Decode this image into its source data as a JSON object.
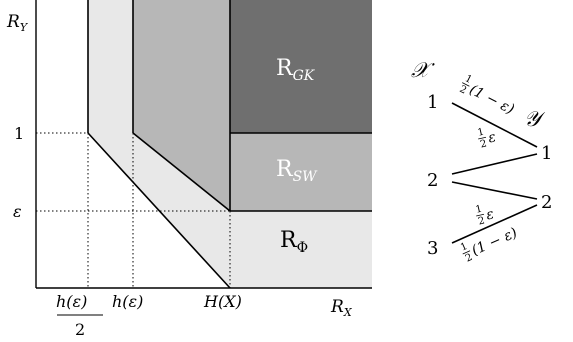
{
  "region_plot": {
    "axis_y_label": "R",
    "axis_y_sub": "Y",
    "axis_x_label": "R",
    "axis_x_sub": "X",
    "tick_y_1": "1",
    "tick_y_eps": "ε",
    "tick_x_half_num": "h(ε)",
    "tick_x_half_den": "2",
    "tick_x_h": "h(ε)",
    "tick_x_H": "H(X)",
    "region_gk_letter": "R",
    "region_gk_sub": "GK",
    "region_sw_letter": "R",
    "region_sw_sub": "SW",
    "region_phi_letter": "R",
    "region_phi_sub": "Φ",
    "colors": {
      "gk": "#6f6f6f",
      "sw": "#b7b7b7",
      "phi": "#e8e8e8",
      "frame": "#000000"
    }
  },
  "channel": {
    "x_set": "𝒳",
    "y_set": "𝒴",
    "inputs": [
      "1",
      "2",
      "3"
    ],
    "outputs": [
      "1",
      "2"
    ],
    "edge_labels": [
      {
        "frac_num": "1",
        "frac_den": "2",
        "rest": "(1 − ε)"
      },
      {
        "frac_num": "1",
        "frac_den": "2",
        "rest": "ε"
      },
      {
        "frac_num": "1",
        "frac_den": "2",
        "rest": "ε"
      },
      {
        "frac_num": "1",
        "frac_den": "2",
        "rest": "(1 − ε)"
      }
    ]
  }
}
